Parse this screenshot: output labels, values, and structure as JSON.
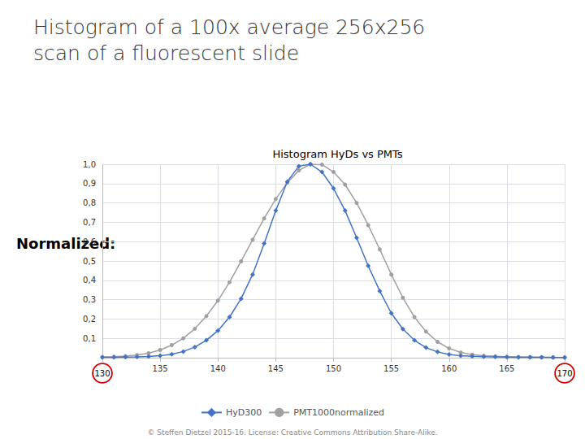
{
  "chart_data": {
    "type": "line",
    "title": "Histogram of a 100x average 256x256\nscan of a fluorescent slide",
    "subtitle": "Histogram HyDs vs PMTs",
    "ylabel": "Normalized:",
    "footer": "© Steffen Dietzel 2015-16. License: Creative Commons Attribution Share-Alike.",
    "x": [
      130,
      131,
      132,
      133,
      134,
      135,
      136,
      137,
      138,
      139,
      140,
      141,
      142,
      143,
      144,
      145,
      146,
      147,
      148,
      149,
      150,
      151,
      152,
      153,
      154,
      155,
      156,
      157,
      158,
      159,
      160,
      161,
      162,
      163,
      164,
      165,
      166,
      167,
      168,
      169,
      170
    ],
    "series": [
      {
        "name": "HyD300",
        "color": "#4472C4",
        "marker": "diamond",
        "values": [
          0.002,
          0.002,
          0.003,
          0.004,
          0.006,
          0.01,
          0.018,
          0.032,
          0.055,
          0.09,
          0.14,
          0.21,
          0.305,
          0.43,
          0.59,
          0.76,
          0.91,
          0.99,
          1.0,
          0.96,
          0.875,
          0.76,
          0.62,
          0.475,
          0.345,
          0.23,
          0.148,
          0.09,
          0.052,
          0.03,
          0.017,
          0.01,
          0.007,
          0.005,
          0.004,
          0.003,
          0.002,
          0.002,
          0.002,
          0.001,
          0.001
        ]
      },
      {
        "name": "PMT1000normalized",
        "color": "#A0A0A0",
        "marker": "circle",
        "values": [
          0.003,
          0.005,
          0.008,
          0.014,
          0.023,
          0.04,
          0.065,
          0.1,
          0.15,
          0.215,
          0.295,
          0.39,
          0.498,
          0.61,
          0.72,
          0.82,
          0.905,
          0.968,
          1.0,
          0.998,
          0.96,
          0.895,
          0.8,
          0.685,
          0.56,
          0.43,
          0.31,
          0.21,
          0.135,
          0.082,
          0.048,
          0.027,
          0.016,
          0.01,
          0.007,
          0.005,
          0.004,
          0.003,
          0.002,
          0.002,
          0.001
        ]
      }
    ],
    "xlim": [
      130,
      170
    ],
    "xticks": [
      130,
      135,
      140,
      145,
      150,
      155,
      160,
      165,
      170
    ],
    "ylim": [
      0,
      1.0
    ],
    "yticks": [
      {
        "value": 0.1,
        "label": "0,1"
      },
      {
        "value": 0.2,
        "label": "0,2"
      },
      {
        "value": 0.3,
        "label": "0,3"
      },
      {
        "value": 0.4,
        "label": "0,4"
      },
      {
        "value": 0.5,
        "label": "0,5"
      },
      {
        "value": 0.6,
        "label": "0,6"
      },
      {
        "value": 0.7,
        "label": "0,7"
      },
      {
        "value": 0.8,
        "label": "0,8"
      },
      {
        "value": 0.9,
        "label": "0,9"
      },
      {
        "value": 1,
        "label": "1,0"
      }
    ],
    "annotations": [
      {
        "x": 130,
        "text": "130",
        "color": "#cc0000"
      },
      {
        "x": 170,
        "text": "170",
        "color": "#cc0000"
      }
    ],
    "grid": true,
    "legend": "bottom"
  }
}
